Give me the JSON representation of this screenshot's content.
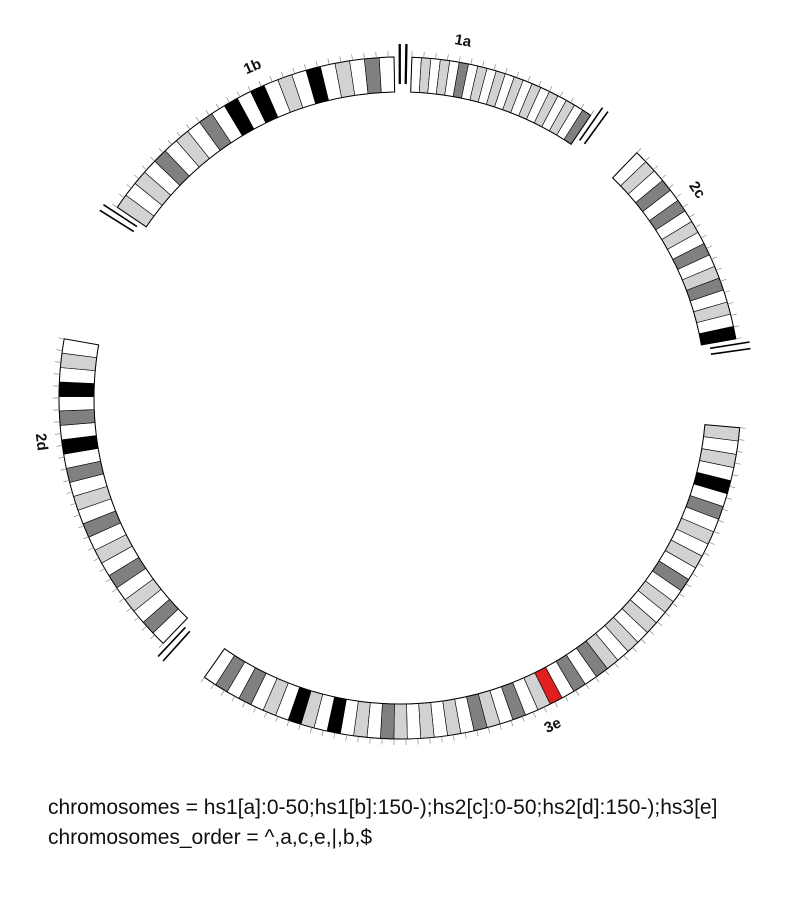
{
  "diagram": {
    "colors": {
      "gneg": "#ffffff",
      "gpos25": "#d2d2d2",
      "gpos50": "#c0c0c0",
      "gpos75": "#808080",
      "gpos100": "#000000",
      "highlight": "#e02020",
      "outline": "#000000"
    },
    "segments": [
      {
        "id": "a",
        "label": "1a",
        "bands": [
          "w",
          "l",
          "w",
          "l",
          "w",
          "g",
          "w",
          "l",
          "w",
          "l",
          "w",
          "l",
          "w",
          "l",
          "w",
          "l",
          "w",
          "l",
          "w",
          "g"
        ]
      },
      {
        "id": "c",
        "label": "2c",
        "bands": [
          "w",
          "l",
          "w",
          "g",
          "w",
          "g",
          "w",
          "l",
          "w",
          "g",
          "w",
          "l",
          "g",
          "w",
          "l",
          "w",
          "b"
        ]
      },
      {
        "id": "e",
        "label": "3e",
        "bands": [
          "l",
          "w",
          "l",
          "w",
          "b",
          "w",
          "g",
          "w",
          "l",
          "w",
          "l",
          "w",
          "g",
          "w",
          "l",
          "w",
          "l",
          "w",
          "l",
          "w",
          "l",
          "g",
          "w",
          "g",
          "w",
          "r",
          "l",
          "w",
          "g",
          "w",
          "l",
          "g",
          "w",
          "l",
          "w",
          "l",
          "w",
          "l",
          "g",
          "w",
          "l",
          "w",
          "b",
          "w",
          "l",
          "b",
          "w",
          "l",
          "w",
          "g",
          "w",
          "g",
          "w"
        ]
      },
      {
        "id": "d",
        "label": "2d",
        "bands": [
          "w",
          "g",
          "w",
          "l",
          "w",
          "g",
          "w",
          "l",
          "w",
          "g",
          "w",
          "l",
          "w",
          "g",
          "w",
          "b",
          "w",
          "g",
          "w",
          "b",
          "w",
          "l",
          "w"
        ]
      },
      {
        "id": "b",
        "label": "1b",
        "bands": [
          "l",
          "w",
          "l",
          "w",
          "g",
          "w",
          "l",
          "w",
          "g",
          "w",
          "b",
          "w",
          "b",
          "w",
          "l",
          "w",
          "b",
          "w",
          "l",
          "w",
          "g",
          "w"
        ]
      }
    ],
    "captions": {
      "line1": "chromosomes = hs1[a]:0-50;hs1[b]:150-);hs2[c]:0-50;hs2[d]:150-);hs3[e]",
      "line2": "chromosomes_order = ^,a,c,e,|,b,$"
    }
  }
}
